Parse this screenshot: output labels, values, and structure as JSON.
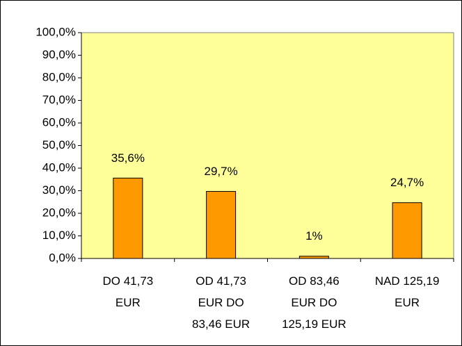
{
  "chart_data": {
    "type": "bar",
    "categories": [
      [
        "DO 41,73",
        "EUR"
      ],
      [
        "OD 41,73",
        "EUR DO",
        "83,46 EUR"
      ],
      [
        "OD 83,46",
        "EUR DO",
        "125,19 EUR"
      ],
      [
        "NAD 125,19",
        "EUR"
      ]
    ],
    "values": [
      35.6,
      29.7,
      1,
      24.7
    ],
    "value_labels": [
      "35,6%",
      "29,7%",
      "1%",
      "24,7%"
    ],
    "color": "#ff9900",
    "plot_background": "#ffff99",
    "ylim": [
      0,
      100
    ],
    "yticks": [
      {
        "value": 0,
        "label": "0,0%"
      },
      {
        "value": 10,
        "label": "10,0%"
      },
      {
        "value": 20,
        "label": "20,0%"
      },
      {
        "value": 30,
        "label": "30,0%"
      },
      {
        "value": 40,
        "label": "40,0%"
      },
      {
        "value": 50,
        "label": "50,0%"
      },
      {
        "value": 60,
        "label": "60,0%"
      },
      {
        "value": 70,
        "label": "70,0%"
      },
      {
        "value": 80,
        "label": "80,0%"
      },
      {
        "value": 90,
        "label": "90,0%"
      },
      {
        "value": 100,
        "label": "100,0%"
      }
    ],
    "grid": false
  }
}
